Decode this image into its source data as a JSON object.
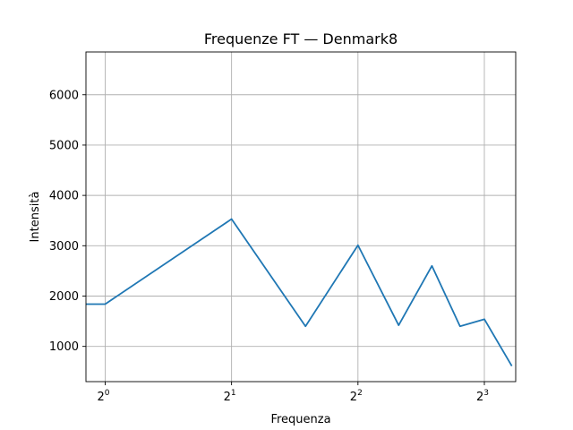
{
  "chart_data": {
    "type": "line",
    "title": "Frequenze FT — Denmark8",
    "xlabel": "Frequenza",
    "ylabel": "Intensità",
    "xscale": "log2",
    "xlim": [
      0.9,
      9.5
    ],
    "ylim": [
      300,
      6850
    ],
    "grid": true,
    "x_ticks": [
      {
        "value": 1,
        "base": "2",
        "exp": "0"
      },
      {
        "value": 2,
        "base": "2",
        "exp": "1"
      },
      {
        "value": 4,
        "base": "2",
        "exp": "2"
      },
      {
        "value": 8,
        "base": "2",
        "exp": "3"
      }
    ],
    "y_ticks": [
      1000,
      2000,
      3000,
      4000,
      5000,
      6000
    ],
    "series": [
      {
        "color": "#1f77b4",
        "x": [
          0.9,
          1.0,
          2.0,
          3.0,
          4.0,
          5.0,
          6.0,
          7.0,
          8.0,
          9.3
        ],
        "y": [
          1840,
          1840,
          3530,
          1400,
          3010,
          1420,
          2600,
          1400,
          1540,
          610
        ]
      }
    ]
  }
}
